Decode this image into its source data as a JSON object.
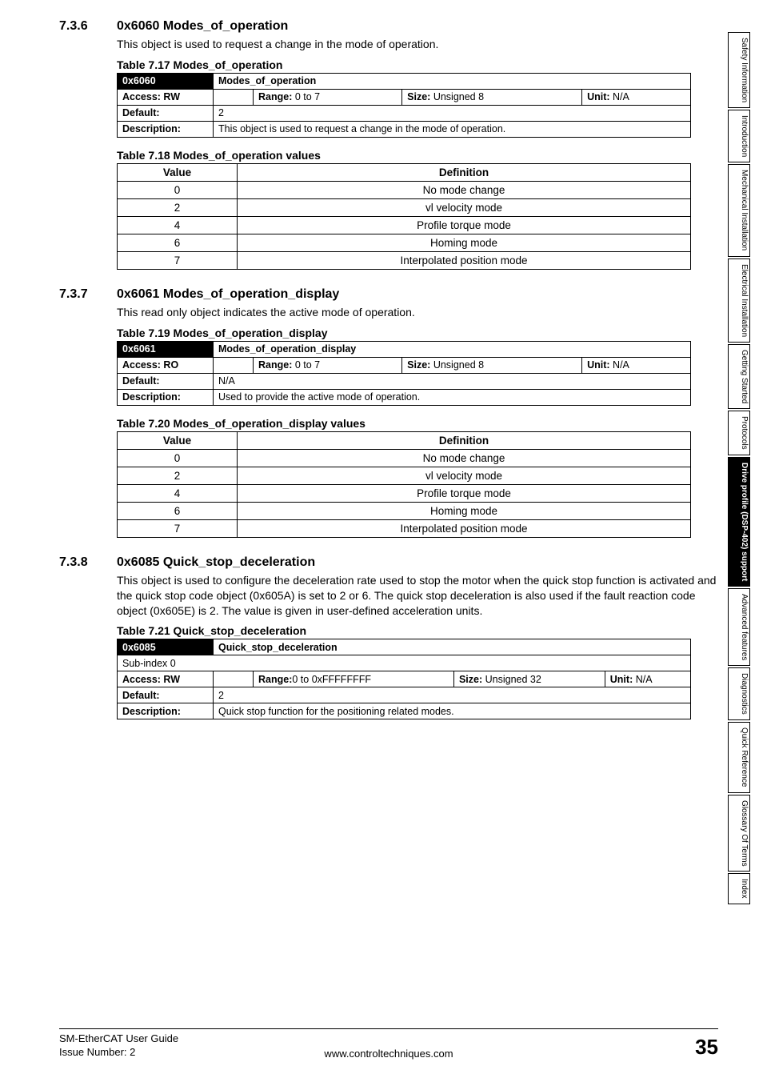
{
  "sections": {
    "s736": {
      "num": "7.3.6",
      "title": "0x6060 Modes_of_operation",
      "desc": "This object is used to request a change in the mode of operation.",
      "obj_caption": "Table 7.17  Modes_of_operation",
      "vals_caption": "Table 7.18  Modes_of_operation values",
      "id": "0x6060",
      "name": "Modes_of_operation",
      "access": "Access: RW",
      "range_lbl": "Range:",
      "range": "0 to 7",
      "size_lbl": "Size:",
      "size": "Unsigned 8",
      "unit_lbl": "Unit:",
      "unit": "N/A",
      "default_lbl": "Default:",
      "default": "2",
      "desc_lbl": "Description:",
      "desc_row": "This object is used to request a change in the mode of operation.",
      "val_hdr": "Value",
      "def_hdr": "Definition",
      "rows": [
        {
          "v": "0",
          "d": "No mode change"
        },
        {
          "v": "2",
          "d": "vl velocity mode"
        },
        {
          "v": "4",
          "d": "Profile torque mode"
        },
        {
          "v": "6",
          "d": "Homing mode"
        },
        {
          "v": "7",
          "d": "Interpolated position mode"
        }
      ]
    },
    "s737": {
      "num": "7.3.7",
      "title": "0x6061 Modes_of_operation_display",
      "desc": "This read only object indicates the active mode of operation.",
      "obj_caption": "Table 7.19  Modes_of_operation_display",
      "vals_caption": "Table 7.20  Modes_of_operation_display values",
      "id": "0x6061",
      "name": "Modes_of_operation_display",
      "access": "Access: RO",
      "range_lbl": "Range:",
      "range": "0 to 7",
      "size_lbl": "Size:",
      "size": "Unsigned 8",
      "unit_lbl": "Unit:",
      "unit": "N/A",
      "default_lbl": "Default:",
      "default": "N/A",
      "desc_lbl": "Description:",
      "desc_row": "Used to provide the active mode of operation.",
      "val_hdr": "Value",
      "def_hdr": "Definition",
      "rows": [
        {
          "v": "0",
          "d": "No mode change"
        },
        {
          "v": "2",
          "d": "vl velocity mode"
        },
        {
          "v": "4",
          "d": "Profile torque mode"
        },
        {
          "v": "6",
          "d": "Homing mode"
        },
        {
          "v": "7",
          "d": "Interpolated position mode"
        }
      ]
    },
    "s738": {
      "num": "7.3.8",
      "title": "0x6085 Quick_stop_deceleration",
      "desc": "This object is used to configure the deceleration rate used to stop the motor when the quick stop function is activated and the quick stop code object (0x605A) is set to 2 or 6. The quick stop deceleration is also used if the fault reaction code object (0x605E) is 2. The value is given in user-defined acceleration units.",
      "obj_caption": "Table 7.21  Quick_stop_deceleration",
      "id": "0x6085",
      "name": "Quick_stop_deceleration",
      "sub": "Sub-index 0",
      "access": "Access: RW",
      "range_lbl": "Range:",
      "range": "0 to 0xFFFFFFFF",
      "size_lbl": "Size:",
      "size": "Unsigned 32",
      "unit_lbl": "Unit:",
      "unit": "N/A",
      "default_lbl": "Default:",
      "default": "2",
      "desc_lbl": "Description:",
      "desc_row": "Quick stop function for the positioning related modes."
    }
  },
  "tabs": [
    {
      "label": "Safety\nInformation",
      "active": false
    },
    {
      "label": "Introduction",
      "active": false
    },
    {
      "label": "Mechanical\nInstallation",
      "active": false
    },
    {
      "label": "Electrical\nInstallation",
      "active": false
    },
    {
      "label": "Getting Started",
      "active": false
    },
    {
      "label": "Protocols",
      "active": false
    },
    {
      "label": "Drive profile (DSP-402)\nsupport",
      "active": true
    },
    {
      "label": "Advanced\nfeatures",
      "active": false
    },
    {
      "label": "Diagnostics",
      "active": false
    },
    {
      "label": "Quick\nReference",
      "active": false
    },
    {
      "label": "Glossary Of\nTerms",
      "active": false
    },
    {
      "label": "Index",
      "active": false
    }
  ],
  "footer": {
    "l1": "SM-EtherCAT User Guide",
    "l2": "Issue Number:  2",
    "center": "www.controltechniques.com",
    "page": "35"
  }
}
